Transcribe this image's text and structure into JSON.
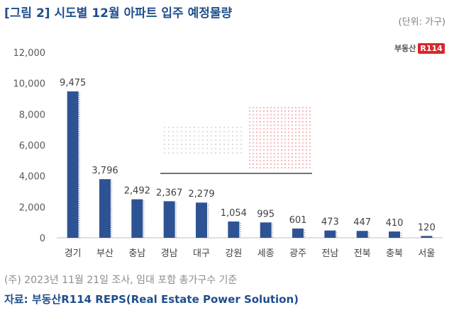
{
  "header": {
    "title": "[그림 2] 시도별 12월 아파트 입주 예정물량",
    "unit": "(단위: 가구)"
  },
  "logo": {
    "text": "부동산",
    "box": "R114"
  },
  "footer": {
    "note": "(주) 2023년 11월 21일 조사, 임대 포함 총가구수 기준",
    "source": "자료: 부동산R114 REPS(Real Estate Power Solution)"
  },
  "chart_data": {
    "type": "bar",
    "categories": [
      "경기",
      "부산",
      "충남",
      "경남",
      "대구",
      "강원",
      "세종",
      "광주",
      "전남",
      "전북",
      "충북",
      "서울"
    ],
    "values": [
      9475,
      3796,
      2492,
      2367,
      2279,
      1054,
      995,
      601,
      473,
      447,
      410,
      120
    ],
    "data_labels": [
      "9,475",
      "3,796",
      "2,492",
      "2,367",
      "2,279",
      "1,054",
      "995",
      "601",
      "473",
      "447",
      "410",
      "120"
    ],
    "yticks": [
      "0",
      "2,000",
      "4,000",
      "6,000",
      "8,000",
      "10,000",
      "12,000"
    ],
    "ylim": [
      0,
      12000
    ],
    "bar_color": "#2e5395",
    "grid": false,
    "legend": "none"
  }
}
